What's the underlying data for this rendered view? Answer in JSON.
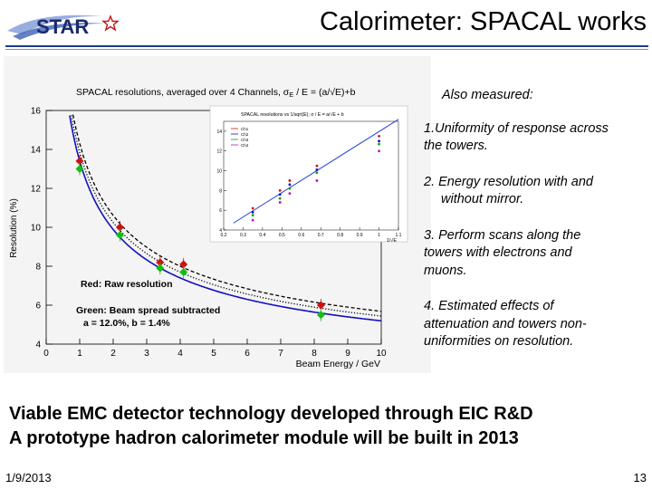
{
  "logo": {
    "text": "STAR",
    "icon": "star-outline-icon"
  },
  "slide_title": "Calorimeter: SPACAL works",
  "figure": {
    "main": {
      "title": "SPACAL resolutions, averaged over 4 Channels, σ",
      "title_sub": "E",
      "title_tail": " / E = (a/√E)+b",
      "ylabel": "Resolution (%)",
      "xlabel": "Beam Energy / GeV",
      "legend_red": "Red: Raw resolution",
      "legend_green": "Green: Beam spread subtracted",
      "fit_params": "a = 12.0%, b = 1.4%",
      "colors": {
        "raw": "#d01010",
        "subtracted": "#10c010",
        "fit": "#1010c0",
        "dotted": "#000000"
      }
    },
    "inset": {
      "title": "SPACAL resolutions vs 1/sqrt(E); σ / E = a/√E + b",
      "xlabel": "1/√E",
      "legend": [
        "Ch1",
        "Ch2",
        "Ch3",
        "Ch4"
      ]
    }
  },
  "chart_data": [
    {
      "type": "scatter",
      "title": "SPACAL resolutions, averaged over 4 Channels, σE / E = (a/√E)+b",
      "xlabel": "Beam Energy / GeV",
      "ylabel": "Resolution (%)",
      "xlim": [
        0,
        10
      ],
      "ylim": [
        4,
        16
      ],
      "xticks": [
        "0",
        "1",
        "2",
        "3",
        "4",
        "5",
        "6",
        "7",
        "8",
        "9",
        "10"
      ],
      "yticks": [
        "4",
        "6",
        "8",
        "10",
        "12",
        "14",
        "16"
      ],
      "grid": false,
      "series": [
        {
          "name": "Red: Raw resolution",
          "color": "#d01010",
          "points": [
            [
              1,
              13.4
            ],
            [
              2.2,
              10.0
            ],
            [
              3.4,
              8.2
            ],
            [
              4.1,
              8.1
            ],
            [
              8.2,
              6.0
            ]
          ]
        },
        {
          "name": "Green: Beam spread subtracted",
          "color": "#10c010",
          "points": [
            [
              1,
              13.0
            ],
            [
              2.2,
              9.6
            ],
            [
              3.4,
              7.9
            ],
            [
              4.1,
              7.7
            ],
            [
              8.2,
              5.5
            ]
          ]
        }
      ],
      "fits": [
        {
          "color": "#1010c0",
          "style": "solid",
          "a": 12.0,
          "b": 1.4
        },
        {
          "color": "#000000",
          "style": "dashed",
          "a": 12.6,
          "b": 1.7
        },
        {
          "color": "#000000",
          "style": "dotted",
          "a": 12.3,
          "b": 1.55
        }
      ]
    },
    {
      "type": "scatter",
      "title": "SPACAL resolutions vs 1/sqrt(E)",
      "xlabel": "1/√E",
      "xlim": [
        0.2,
        1.1
      ],
      "ylim": [
        4,
        15
      ],
      "xticks": [
        "0.2",
        "0.3",
        "0.4",
        "0.5",
        "0.6",
        "0.7",
        "0.8",
        "0.9",
        "1",
        "1.1"
      ],
      "yticks": [
        "4",
        "6",
        "8",
        "10",
        "12",
        "14"
      ],
      "series": [
        {
          "name": "Ch1",
          "color": "#d01010",
          "points": [
            [
              0.35,
              6.2
            ],
            [
              0.49,
              8.0
            ],
            [
              0.54,
              9.0
            ],
            [
              0.68,
              10.5
            ],
            [
              1.0,
              13.5
            ]
          ]
        },
        {
          "name": "Ch2",
          "color": "#1010c0",
          "points": [
            [
              0.35,
              5.8
            ],
            [
              0.49,
              7.6
            ],
            [
              0.54,
              8.6
            ],
            [
              0.68,
              10.1
            ],
            [
              1.0,
              13.0
            ]
          ]
        },
        {
          "name": "Ch3",
          "color": "#10a010",
          "points": [
            [
              0.35,
              5.5
            ],
            [
              0.49,
              7.2
            ],
            [
              0.54,
              8.2
            ],
            [
              0.68,
              9.8
            ],
            [
              1.0,
              12.7
            ]
          ]
        },
        {
          "name": "Ch4",
          "color": "#c010c0",
          "points": [
            [
              0.35,
              5.0
            ],
            [
              0.49,
              6.8
            ],
            [
              0.54,
              7.7
            ],
            [
              0.68,
              9.0
            ],
            [
              1.0,
              12.0
            ]
          ]
        }
      ],
      "fit": {
        "color": "#2040e0",
        "from": [
          0.25,
          4.7
        ],
        "to": [
          1.1,
          15.2
        ]
      }
    }
  ],
  "notes": {
    "heading": "Also measured:",
    "items": [
      {
        "line1": "1.Uniformity of response across",
        "line2": "the towers."
      },
      {
        "line1": "2. Energy resolution with and",
        "line2": "without mirror."
      },
      {
        "line1": "3. Perform  scans along the",
        "line2": "towers with electrons and",
        "line3": "muons."
      },
      {
        "line1": "4. Estimated effects of",
        "line2": "attenuation and towers non-",
        "line3": "uniformities on resolution."
      }
    ]
  },
  "bottom": {
    "line1": "Viable EMC detector technology developed through EIC R&D",
    "line2": "A prototype hadron calorimeter module will be built in 2013"
  },
  "footer": {
    "date": "1/9/2013",
    "page": "13"
  }
}
